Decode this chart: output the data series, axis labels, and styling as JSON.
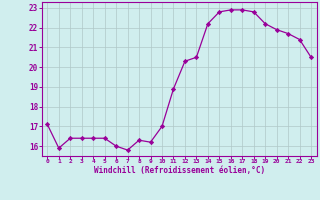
{
  "x": [
    0,
    1,
    2,
    3,
    4,
    5,
    6,
    7,
    8,
    9,
    10,
    11,
    12,
    13,
    14,
    15,
    16,
    17,
    18,
    19,
    20,
    21,
    22,
    23
  ],
  "y": [
    17.1,
    15.9,
    16.4,
    16.4,
    16.4,
    16.4,
    16.0,
    15.8,
    16.3,
    16.2,
    17.0,
    18.9,
    20.3,
    20.5,
    22.2,
    22.8,
    22.9,
    22.9,
    22.8,
    22.2,
    21.9,
    21.7,
    21.4,
    20.5
  ],
  "line_color": "#990099",
  "marker": "D",
  "marker_size": 2.2,
  "bg_color": "#d0eeee",
  "grid_color": "#b0c8c8",
  "xlabel": "Windchill (Refroidissement éolien,°C)",
  "xlabel_color": "#990099",
  "tick_color": "#990099",
  "ylim": [
    15.5,
    23.3
  ],
  "yticks": [
    16,
    17,
    18,
    19,
    20,
    21,
    22,
    23
  ],
  "xlim": [
    -0.5,
    23.5
  ],
  "spine_color": "#990099"
}
